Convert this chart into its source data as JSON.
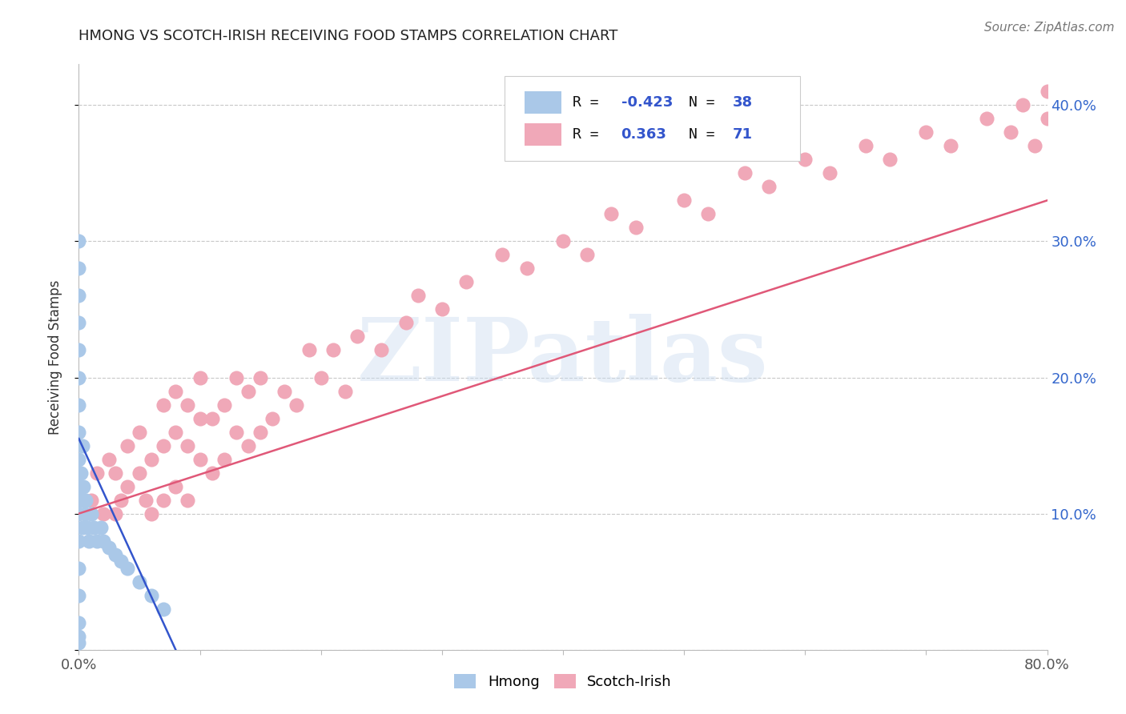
{
  "title": "HMONG VS SCOTCH-IRISH RECEIVING FOOD STAMPS CORRELATION CHART",
  "source": "Source: ZipAtlas.com",
  "ylabel": "Receiving Food Stamps",
  "xlim": [
    0.0,
    0.8
  ],
  "ylim": [
    0.0,
    0.43
  ],
  "background_color": "#ffffff",
  "grid_color": "#c8c8c8",
  "watermark_text": "ZIPatlas",
  "hmong_color": "#aac8e8",
  "scotch_irish_color": "#f0a8b8",
  "hmong_line_color": "#3355cc",
  "scotch_irish_line_color": "#e05878",
  "hmong_R": -0.423,
  "hmong_N": 38,
  "scotch_irish_R": 0.363,
  "scotch_irish_N": 71,
  "legend_text_color": "#111111",
  "legend_value_color": "#3355cc",
  "hmong_x": [
    0.0,
    0.0,
    0.0,
    0.0,
    0.0,
    0.0,
    0.0,
    0.0,
    0.0,
    0.0,
    0.0,
    0.0,
    0.0,
    0.0,
    0.0,
    0.0,
    0.0,
    0.002,
    0.002,
    0.003,
    0.003,
    0.004,
    0.005,
    0.006,
    0.007,
    0.008,
    0.01,
    0.012,
    0.015,
    0.018,
    0.02,
    0.025,
    0.03,
    0.035,
    0.04,
    0.05,
    0.06,
    0.07
  ],
  "hmong_y": [
    0.005,
    0.01,
    0.02,
    0.04,
    0.06,
    0.08,
    0.1,
    0.12,
    0.14,
    0.16,
    0.18,
    0.2,
    0.22,
    0.24,
    0.26,
    0.28,
    0.3,
    0.13,
    0.11,
    0.15,
    0.09,
    0.12,
    0.1,
    0.11,
    0.09,
    0.08,
    0.1,
    0.09,
    0.08,
    0.09,
    0.08,
    0.075,
    0.07,
    0.065,
    0.06,
    0.05,
    0.04,
    0.03
  ],
  "scotch_irish_x": [
    0.01,
    0.015,
    0.02,
    0.025,
    0.03,
    0.03,
    0.035,
    0.04,
    0.04,
    0.05,
    0.05,
    0.055,
    0.06,
    0.06,
    0.07,
    0.07,
    0.07,
    0.08,
    0.08,
    0.08,
    0.09,
    0.09,
    0.09,
    0.1,
    0.1,
    0.1,
    0.11,
    0.11,
    0.12,
    0.12,
    0.13,
    0.13,
    0.14,
    0.14,
    0.15,
    0.15,
    0.16,
    0.17,
    0.18,
    0.19,
    0.2,
    0.21,
    0.22,
    0.23,
    0.25,
    0.27,
    0.28,
    0.3,
    0.32,
    0.35,
    0.37,
    0.4,
    0.42,
    0.44,
    0.46,
    0.5,
    0.52,
    0.55,
    0.57,
    0.6,
    0.62,
    0.65,
    0.67,
    0.7,
    0.72,
    0.75,
    0.77,
    0.78,
    0.79,
    0.8,
    0.8
  ],
  "scotch_irish_y": [
    0.11,
    0.13,
    0.1,
    0.14,
    0.1,
    0.13,
    0.11,
    0.12,
    0.15,
    0.13,
    0.16,
    0.11,
    0.1,
    0.14,
    0.11,
    0.15,
    0.18,
    0.12,
    0.16,
    0.19,
    0.11,
    0.15,
    0.18,
    0.14,
    0.17,
    0.2,
    0.13,
    0.17,
    0.14,
    0.18,
    0.16,
    0.2,
    0.15,
    0.19,
    0.16,
    0.2,
    0.17,
    0.19,
    0.18,
    0.22,
    0.2,
    0.22,
    0.19,
    0.23,
    0.22,
    0.24,
    0.26,
    0.25,
    0.27,
    0.29,
    0.28,
    0.3,
    0.29,
    0.32,
    0.31,
    0.33,
    0.32,
    0.35,
    0.34,
    0.36,
    0.35,
    0.37,
    0.36,
    0.38,
    0.37,
    0.39,
    0.38,
    0.4,
    0.37,
    0.41,
    0.39
  ],
  "hmong_line_x": [
    0.0,
    0.08
  ],
  "hmong_line_y": [
    0.155,
    0.0
  ],
  "scotch_irish_line_x": [
    0.0,
    0.8
  ],
  "scotch_irish_line_y": [
    0.1,
    0.33
  ],
  "title_fontsize": 13,
  "axis_label_fontsize": 12,
  "tick_fontsize": 13,
  "source_fontsize": 11
}
